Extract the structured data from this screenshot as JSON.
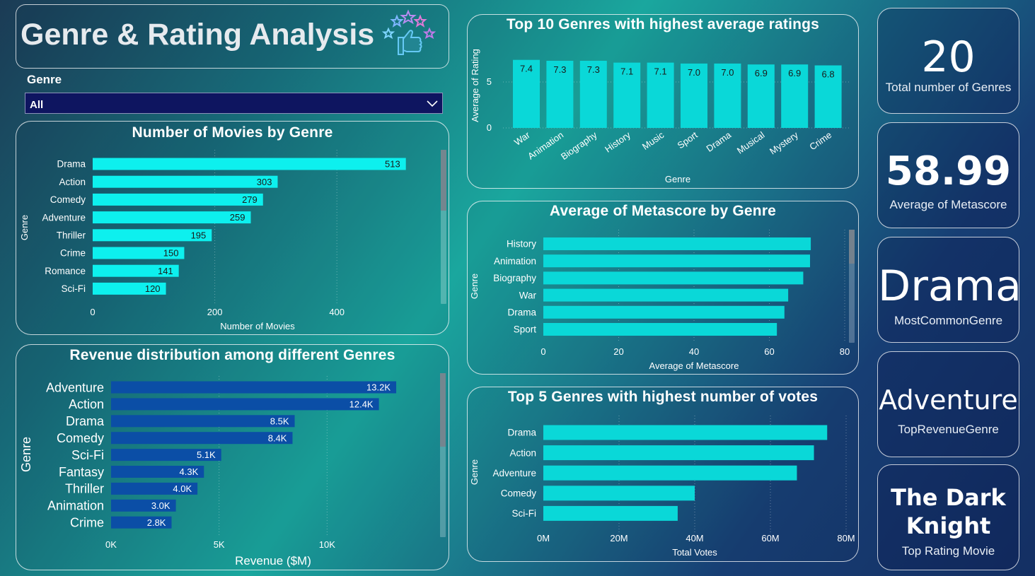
{
  "header": {
    "title": "Genre & Rating Analysis",
    "icon": "thumbs-up-stars-icon"
  },
  "slicer": {
    "label": "Genre",
    "selected": "All"
  },
  "colors": {
    "cyan_bar": "#0df0ee",
    "teal_bar": "#0ad8d8",
    "blue_bar": "#0b4ea6",
    "dropdown_bg": "#0e1560"
  },
  "kpis": [
    {
      "value": "20",
      "label": "Total number of Genres"
    },
    {
      "value": "58.99",
      "label": "Average of Metascore"
    },
    {
      "value": "Drama",
      "label": "MostCommonGenre"
    },
    {
      "value": "Adventure",
      "label": "TopRevenueGenre"
    },
    {
      "value": "The Dark Knight",
      "label": "Top Rating Movie"
    }
  ],
  "chart_data": [
    {
      "id": "movies_by_genre",
      "type": "bar",
      "orientation": "horizontal",
      "title": "Number of Movies by Genre",
      "xlabel": "Number of Movies",
      "ylabel": "Genre",
      "categories": [
        "Drama",
        "Action",
        "Comedy",
        "Adventure",
        "Thriller",
        "Crime",
        "Romance",
        "Sci-Fi"
      ],
      "values": [
        513,
        303,
        279,
        259,
        195,
        150,
        141,
        120
      ],
      "data_labels": [
        "513",
        "303",
        "279",
        "259",
        "195",
        "150",
        "141",
        "120"
      ],
      "xticks": [
        "0",
        "200",
        "400"
      ],
      "xlim": [
        0,
        540
      ],
      "grid": true,
      "color": "#0df0ee"
    },
    {
      "id": "revenue_by_genre",
      "type": "bar",
      "orientation": "horizontal",
      "title": "Revenue distribution among different Genres",
      "xlabel": "Revenue ($M)",
      "ylabel": "Genre",
      "categories": [
        "Adventure",
        "Action",
        "Drama",
        "Comedy",
        "Sci-Fi",
        "Fantasy",
        "Thriller",
        "Animation",
        "Crime"
      ],
      "values": [
        13200,
        12400,
        8500,
        8400,
        5100,
        4300,
        4000,
        3000,
        2800
      ],
      "data_labels": [
        "13.2K",
        "12.4K",
        "8.5K",
        "8.4K",
        "5.1K",
        "4.3K",
        "4.0K",
        "3.0K",
        "2.8K"
      ],
      "xticks": [
        "0K",
        "5K",
        "10K"
      ],
      "xlim": [
        0,
        15000
      ],
      "grid": true,
      "color": "#0b4ea6"
    },
    {
      "id": "top10_ratings",
      "type": "bar",
      "orientation": "vertical",
      "title": "Top 10 Genres with highest average ratings",
      "xlabel": "Genre",
      "ylabel": "Average of Rating",
      "categories": [
        "War",
        "Animation",
        "Biography",
        "History",
        "Music",
        "Sport",
        "Drama",
        "Musical",
        "Mystery",
        "Crime"
      ],
      "values": [
        7.4,
        7.3,
        7.3,
        7.1,
        7.1,
        7.0,
        7.0,
        6.9,
        6.9,
        6.8
      ],
      "data_labels": [
        "7.4",
        "7.3",
        "7.3",
        "7.1",
        "7.1",
        "7.0",
        "7.0",
        "6.9",
        "6.9",
        "6.8"
      ],
      "yticks": [
        "0",
        "5"
      ],
      "ylim": [
        0,
        8.3
      ],
      "grid": true,
      "color": "#0ad8d8"
    },
    {
      "id": "metascore_by_genre",
      "type": "bar",
      "orientation": "horizontal",
      "title": "Average of Metascore by Genre",
      "xlabel": "Average of Metascore",
      "ylabel": "Genre",
      "categories": [
        "History",
        "Animation",
        "Biography",
        "War",
        "Drama",
        "Sport"
      ],
      "values": [
        71,
        70.8,
        69,
        65,
        64,
        62
      ],
      "xticks": [
        "0",
        "20",
        "40",
        "60",
        "80"
      ],
      "xlim": [
        0,
        80
      ],
      "grid": true,
      "color": "#0ad8d8"
    },
    {
      "id": "top5_votes",
      "type": "bar",
      "orientation": "horizontal",
      "title": "Top 5 Genres with highest number of votes",
      "xlabel": "Total Votes",
      "ylabel": "Genre",
      "categories": [
        "Drama",
        "Action",
        "Adventure",
        "Comedy",
        "Sci-Fi"
      ],
      "values": [
        75000000,
        71500000,
        67000000,
        40000000,
        35500000
      ],
      "xticks": [
        "0M",
        "20M",
        "40M",
        "60M",
        "80M"
      ],
      "xlim": [
        0,
        80000000
      ],
      "grid": true,
      "color": "#0ad8d8"
    }
  ]
}
